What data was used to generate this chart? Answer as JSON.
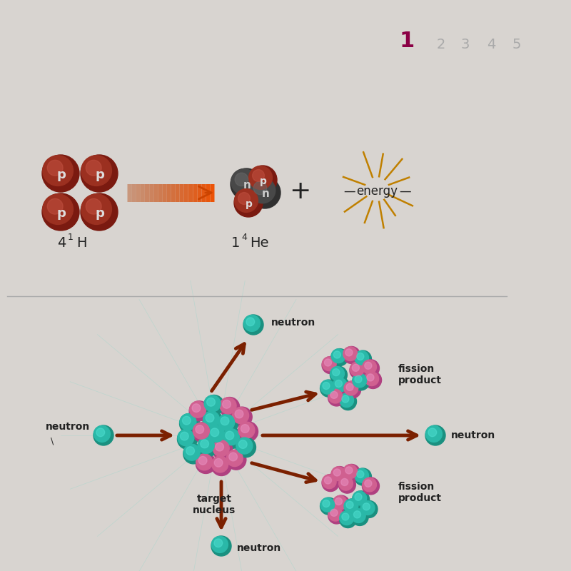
{
  "bg_color": "#d8d4d0",
  "bg_color2": "#e0dcd8",
  "page_number_color": "#8B0045",
  "page_numbers": [
    "1",
    "2",
    "3",
    "4",
    "5"
  ],
  "proton_color": "#7A1A10",
  "proton_color2": "#9B3020",
  "proton_highlight": "#C05040",
  "neutron_color": "#303030",
  "neutron_color2": "#484848",
  "neutron_highlight": "#686868",
  "teal_dark": "#1A9080",
  "teal_mid": "#2AB8A8",
  "teal_light": "#4EDED0",
  "pink_dark": "#B04080",
  "pink_mid": "#D06090",
  "pink_light": "#E890C0",
  "arrow_color": "#7B2000",
  "orange_color": "#CC4400",
  "energy_line_color": "#C08000",
  "divider_color": "#AAAAAA",
  "text_color": "#222222",
  "neutron_text": "neutron",
  "target_text": "target\nnucleus",
  "fission_product_text": "fission\nproduct"
}
